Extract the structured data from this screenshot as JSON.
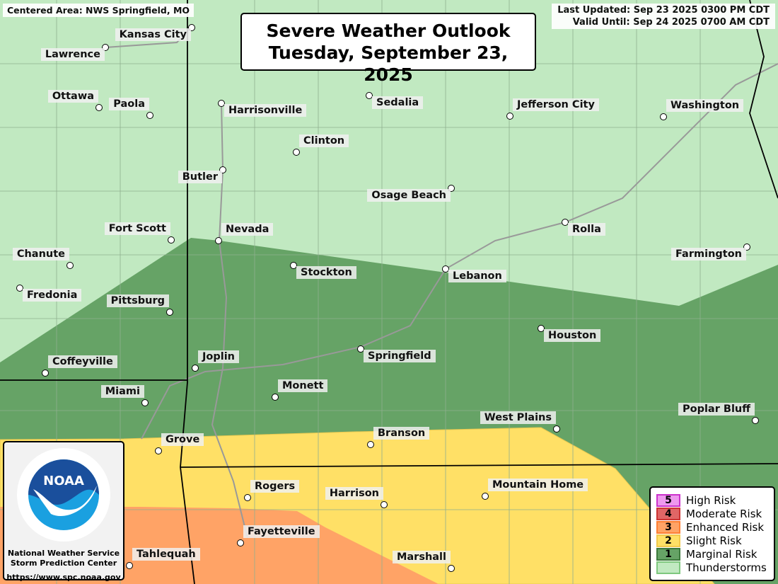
{
  "header": {
    "centered_area": "Centered Area: NWS Springfield, MO",
    "last_updated": "Last Updated: Sep 23 2025 0300 PM CDT",
    "valid_until": "Valid Until: Sep 24 2025 0700 AM CDT",
    "title_line1": "Severe Weather Outlook",
    "title_line2": "Tuesday, September 23, 2025"
  },
  "colors": {
    "thunderstorms": "#c1e9c1",
    "marginal": "#66a366",
    "slight": "#ffe066",
    "enhanced": "#ffa366",
    "moderate": "#e06666",
    "high": "#ee99ee"
  },
  "cities": [
    "Kansas City",
    "Lawrence",
    "Ottawa",
    "Paola",
    "Harrisonville",
    "Sedalia",
    "Jefferson City",
    "Washington",
    "Clinton",
    "Butler",
    "Osage Beach",
    "Rolla",
    "Fort Scott",
    "Nevada",
    "Chanute",
    "Farmington",
    "Stockton",
    "Lebanon",
    "Fredonia",
    "Pittsburg",
    "Houston",
    "Springfield",
    "Joplin",
    "Coffeyville",
    "Monett",
    "Miami",
    "Poplar Bluff",
    "West Plains",
    "Branson",
    "Grove",
    "Rogers",
    "Mountain Home",
    "Harrison",
    "Fayetteville",
    "Tahlequah",
    "Marshall"
  ],
  "logo": {
    "emblem_text": "NOAA",
    "ring_top": "NATIONAL OCEANIC AND ATMOSPHERIC ADMINISTRATION",
    "ring_bottom": "U.S. DEPARTMENT OF COMMERCE",
    "line1": "National Weather Service",
    "line2": "Storm Prediction Center",
    "url": "https://www.spc.noaa.gov"
  },
  "legend": [
    {
      "num": "5",
      "label": "High Risk",
      "fill": "#ee99ee",
      "stroke": "#cc33cc"
    },
    {
      "num": "4",
      "label": "Moderate Risk",
      "fill": "#e06666",
      "stroke": "#cc3333"
    },
    {
      "num": "3",
      "label": "Enhanced Risk",
      "fill": "#ffa366",
      "stroke": "#ff7f33"
    },
    {
      "num": "2",
      "label": "Slight Risk",
      "fill": "#ffe066",
      "stroke": "#f2c94c"
    },
    {
      "num": "1",
      "label": "Marginal Risk",
      "fill": "#66a366",
      "stroke": "#3d7a3d"
    },
    {
      "num": "",
      "label": "Thunderstorms",
      "fill": "#c1e9c1",
      "stroke": "#7ec87e"
    }
  ]
}
